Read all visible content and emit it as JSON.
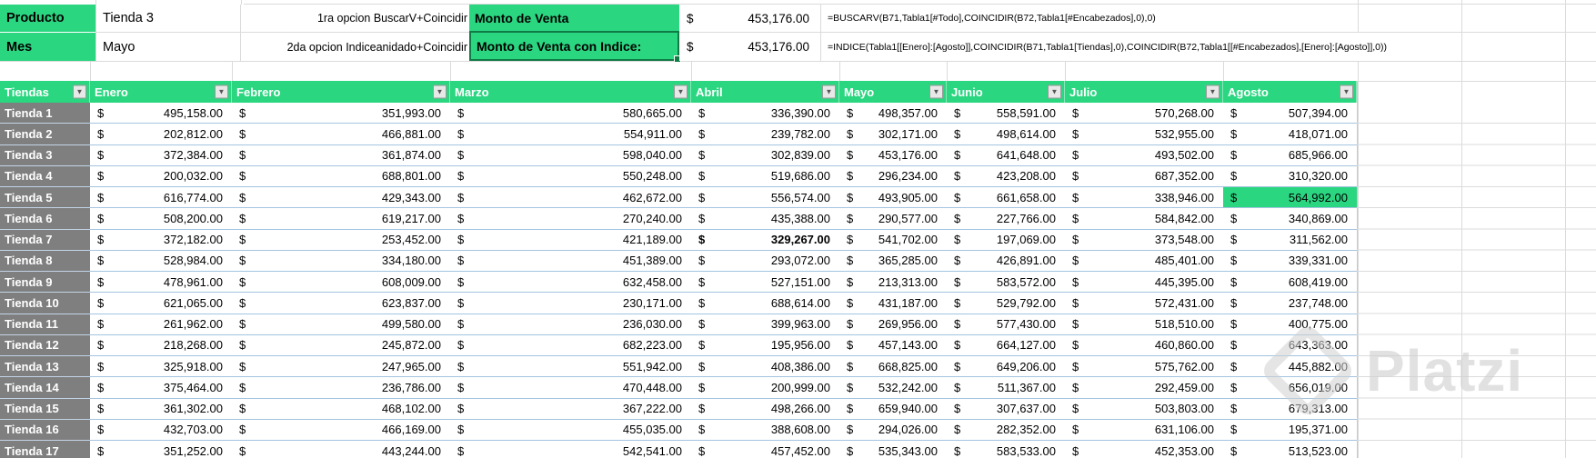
{
  "colors": {
    "accent_green": "#2BD681",
    "selection_green": "#0F7B45",
    "label_gray": "#7F7F7F",
    "row_line_blue": "#A3C4E0"
  },
  "top_panel": {
    "rows": [
      {
        "label": "Producto",
        "value": "Tienda 3",
        "option_label": "1ra opcion BuscarV+Coincidir",
        "monto_label": "Monto de Venta",
        "currency": "$",
        "amount": "453,176.00",
        "formula": "=BUSCARV(B71,Tabla1[#Todo],COINCIDIR(B72,Tabla1[#Encabezados],0),0)"
      },
      {
        "label": "Mes",
        "value": "Mayo",
        "option_label": "2da opcion Indiceanidado+Coincidir",
        "monto_label": "Monto de Venta con Indice:",
        "currency": "$",
        "amount": "453,176.00",
        "formula": "=INDICE(Tabla1[[Enero]:[Agosto]],COINCIDIR(B71,Tabla1[Tiendas],0),COINCIDIR(B72,Tabla1[[#Encabezados],[Enero]:[Agosto]],0))"
      }
    ]
  },
  "table": {
    "headers": [
      "Tiendas",
      "Enero",
      "Febrero",
      "Marzo",
      "Abril",
      "Mayo",
      "Junio",
      "Julio",
      "Agosto"
    ],
    "currency": "$",
    "rows": [
      {
        "name": "Tienda 1",
        "values": [
          "495,158.00",
          "351,993.00",
          "580,665.00",
          "336,390.00",
          "498,357.00",
          "558,591.00",
          "570,268.00",
          "507,394.00"
        ]
      },
      {
        "name": "Tienda 2",
        "values": [
          "202,812.00",
          "466,881.00",
          "554,911.00",
          "239,782.00",
          "302,171.00",
          "498,614.00",
          "532,955.00",
          "418,071.00"
        ]
      },
      {
        "name": "Tienda 3",
        "values": [
          "372,384.00",
          "361,874.00",
          "598,040.00",
          "302,839.00",
          "453,176.00",
          "641,648.00",
          "493,502.00",
          "685,966.00"
        ]
      },
      {
        "name": "Tienda 4",
        "values": [
          "200,032.00",
          "688,801.00",
          "550,248.00",
          "519,686.00",
          "296,234.00",
          "423,208.00",
          "687,352.00",
          "310,320.00"
        ]
      },
      {
        "name": "Tienda 5",
        "values": [
          "616,774.00",
          "429,343.00",
          "462,672.00",
          "556,574.00",
          "493,905.00",
          "661,658.00",
          "338,946.00",
          "564,992.00"
        ]
      },
      {
        "name": "Tienda 6",
        "values": [
          "508,200.00",
          "619,217.00",
          "270,240.00",
          "435,388.00",
          "290,577.00",
          "227,766.00",
          "584,842.00",
          "340,869.00"
        ]
      },
      {
        "name": "Tienda 7",
        "values": [
          "372,182.00",
          "253,452.00",
          "421,189.00",
          "329,267.00",
          "541,702.00",
          "197,069.00",
          "373,548.00",
          "311,562.00"
        ]
      },
      {
        "name": "Tienda 8",
        "values": [
          "528,984.00",
          "334,180.00",
          "451,389.00",
          "293,072.00",
          "365,285.00",
          "426,891.00",
          "485,401.00",
          "339,331.00"
        ]
      },
      {
        "name": "Tienda 9",
        "values": [
          "478,961.00",
          "608,009.00",
          "632,458.00",
          "527,151.00",
          "213,313.00",
          "583,572.00",
          "445,395.00",
          "608,419.00"
        ]
      },
      {
        "name": "Tienda 10",
        "values": [
          "621,065.00",
          "623,837.00",
          "230,171.00",
          "688,614.00",
          "431,187.00",
          "529,792.00",
          "572,431.00",
          "237,748.00"
        ]
      },
      {
        "name": "Tienda 11",
        "values": [
          "261,962.00",
          "499,580.00",
          "236,030.00",
          "399,963.00",
          "269,956.00",
          "577,430.00",
          "518,510.00",
          "400,775.00"
        ]
      },
      {
        "name": "Tienda 12",
        "values": [
          "218,268.00",
          "245,872.00",
          "682,223.00",
          "195,956.00",
          "457,143.00",
          "664,127.00",
          "460,860.00",
          "643,363.00"
        ]
      },
      {
        "name": "Tienda 13",
        "values": [
          "325,918.00",
          "247,965.00",
          "551,942.00",
          "408,386.00",
          "668,825.00",
          "649,206.00",
          "575,762.00",
          "445,882.00"
        ]
      },
      {
        "name": "Tienda 14",
        "values": [
          "375,464.00",
          "236,786.00",
          "470,448.00",
          "200,999.00",
          "532,242.00",
          "511,367.00",
          "292,459.00",
          "656,019.00"
        ]
      },
      {
        "name": "Tienda 15",
        "values": [
          "361,302.00",
          "468,102.00",
          "367,222.00",
          "498,266.00",
          "659,940.00",
          "307,637.00",
          "503,803.00",
          "679,313.00"
        ]
      },
      {
        "name": "Tienda 16",
        "values": [
          "432,703.00",
          "466,169.00",
          "455,035.00",
          "388,608.00",
          "294,026.00",
          "282,352.00",
          "631,106.00",
          "195,371.00"
        ]
      },
      {
        "name": "Tienda 17",
        "values": [
          "351,252.00",
          "443,244.00",
          "542,541.00",
          "457,452.00",
          "535,343.00",
          "583,533.00",
          "452,353.00",
          "513,523.00"
        ]
      }
    ],
    "highlight_cell": {
      "row_index": 4,
      "col_index": 7
    },
    "bold_cell": {
      "row_index": 6,
      "col_index": 3
    }
  },
  "watermark": {
    "text": "Platzi"
  }
}
